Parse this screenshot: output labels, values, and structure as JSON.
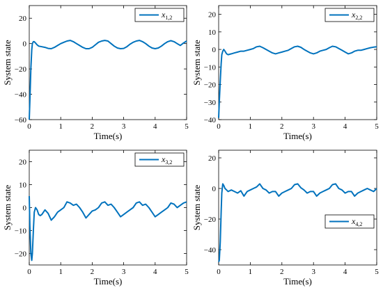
{
  "chart_data": [
    {
      "type": "line",
      "xlabel": "Time(s)",
      "ylabel": "System state",
      "xlim": [
        0,
        5
      ],
      "ylim": [
        -60,
        30
      ],
      "xticks": [
        0,
        1,
        2,
        3,
        4,
        5
      ],
      "yticks": [
        -60,
        -40,
        -20,
        0,
        20
      ],
      "legend": {
        "base": "x",
        "sub": "1,2",
        "position": "top-right"
      },
      "series": [
        {
          "name": "x1,2",
          "x": [
            0,
            0.02,
            0.05,
            0.08,
            0.1,
            0.13,
            0.16,
            0.2,
            0.25,
            0.3,
            0.4,
            0.5,
            0.6,
            0.7,
            0.8,
            0.9,
            1.0,
            1.1,
            1.2,
            1.3,
            1.4,
            1.5,
            1.6,
            1.7,
            1.8,
            1.9,
            2.0,
            2.1,
            2.2,
            2.3,
            2.4,
            2.5,
            2.6,
            2.7,
            2.8,
            2.9,
            3.0,
            3.1,
            3.2,
            3.3,
            3.4,
            3.5,
            3.6,
            3.7,
            3.8,
            3.9,
            4.0,
            4.1,
            4.2,
            4.3,
            4.4,
            4.5,
            4.6,
            4.7,
            4.8,
            4.9,
            5.0
          ],
          "y": [
            -60,
            -45,
            -20,
            -5,
            0,
            1.5,
            1.5,
            0.5,
            -1,
            -2,
            -2.5,
            -3,
            -3.8,
            -4,
            -3,
            -1.5,
            0,
            1,
            2,
            2.5,
            1.5,
            0,
            -1.5,
            -3,
            -4,
            -4,
            -3,
            -1,
            1,
            2,
            2.5,
            2,
            0,
            -2,
            -3.5,
            -4,
            -3.8,
            -2.5,
            -0.5,
            1,
            2,
            2.5,
            1.5,
            0,
            -2,
            -3.5,
            -4,
            -3.5,
            -2,
            0,
            1.5,
            2.3,
            1.5,
            0,
            -1.5,
            0.5,
            2
          ]
        }
      ]
    },
    {
      "type": "line",
      "xlabel": "Time(s)",
      "ylabel": "System state",
      "xlim": [
        0,
        5
      ],
      "ylim": [
        -40,
        25
      ],
      "xticks": [
        0,
        1,
        2,
        3,
        4,
        5
      ],
      "yticks": [
        -40,
        -30,
        -20,
        -10,
        0,
        10,
        20
      ],
      "legend": {
        "base": "x",
        "sub": "2,2",
        "position": "top-right"
      },
      "series": [
        {
          "name": "x2,2",
          "x": [
            0,
            0.02,
            0.05,
            0.08,
            0.1,
            0.13,
            0.16,
            0.2,
            0.25,
            0.3,
            0.4,
            0.5,
            0.6,
            0.7,
            0.8,
            0.9,
            1.0,
            1.1,
            1.2,
            1.3,
            1.4,
            1.5,
            1.6,
            1.7,
            1.8,
            1.9,
            2.0,
            2.1,
            2.2,
            2.3,
            2.4,
            2.5,
            2.6,
            2.7,
            2.8,
            2.9,
            3.0,
            3.1,
            3.2,
            3.3,
            3.4,
            3.5,
            3.6,
            3.7,
            3.8,
            3.9,
            4.0,
            4.1,
            4.2,
            4.3,
            4.4,
            4.5,
            4.6,
            4.7,
            4.8,
            4.9,
            5.0
          ],
          "y": [
            -39,
            -30,
            -18,
            -8,
            -3,
            -1,
            0,
            -1,
            -2.5,
            -3,
            -2.5,
            -2,
            -1.5,
            -1,
            -1,
            -0.5,
            0,
            0.5,
            1.5,
            1.8,
            1,
            0,
            -1,
            -2,
            -2.5,
            -2,
            -1.5,
            -1,
            -0.5,
            0.5,
            1.5,
            1.8,
            1.2,
            0,
            -1,
            -2,
            -2.5,
            -2,
            -1,
            -0.5,
            0,
            1,
            1.8,
            1.5,
            0.5,
            -0.5,
            -1.5,
            -2.5,
            -2,
            -1,
            -0.5,
            -0.5,
            0,
            0.5,
            1,
            1.3,
            1.5
          ]
        }
      ]
    },
    {
      "type": "line",
      "xlabel": "Time(s)",
      "ylabel": "System state",
      "xlim": [
        0,
        5
      ],
      "ylim": [
        -25,
        25
      ],
      "xticks": [
        0,
        1,
        2,
        3,
        4,
        5
      ],
      "yticks": [
        -20,
        -10,
        0,
        10,
        20
      ],
      "legend": {
        "base": "x",
        "sub": "3,2",
        "position": "top-right"
      },
      "series": [
        {
          "name": "x3,2",
          "x": [
            0,
            0.02,
            0.05,
            0.08,
            0.1,
            0.13,
            0.16,
            0.2,
            0.25,
            0.3,
            0.35,
            0.4,
            0.5,
            0.6,
            0.7,
            0.8,
            0.9,
            1.0,
            1.1,
            1.2,
            1.3,
            1.4,
            1.5,
            1.6,
            1.7,
            1.8,
            1.9,
            2.0,
            2.1,
            2.2,
            2.3,
            2.4,
            2.5,
            2.6,
            2.7,
            2.8,
            2.9,
            3.0,
            3.1,
            3.2,
            3.3,
            3.4,
            3.5,
            3.6,
            3.7,
            3.8,
            3.9,
            4.0,
            4.1,
            4.2,
            4.3,
            4.4,
            4.5,
            4.6,
            4.7,
            4.8,
            4.9,
            5.0
          ],
          "y": [
            5,
            -8,
            -20,
            -23,
            -20,
            -10,
            -2,
            0,
            -1,
            -3,
            -3.5,
            -3,
            -1,
            -2.5,
            -5.5,
            -4,
            -2,
            -1,
            0,
            2.5,
            2,
            1,
            1.5,
            0,
            -2,
            -4.5,
            -3,
            -1.5,
            -1,
            0,
            2,
            2.5,
            1,
            1.5,
            0,
            -2,
            -4,
            -3,
            -2,
            -1,
            0,
            2,
            2.5,
            1,
            1.5,
            0,
            -2,
            -4,
            -3,
            -2,
            -1,
            0,
            2,
            1.5,
            0,
            1,
            2,
            2.5
          ]
        }
      ]
    },
    {
      "type": "line",
      "xlabel": "Time(s)",
      "ylabel": "System state",
      "xlim": [
        0,
        5
      ],
      "ylim": [
        -50,
        25
      ],
      "xticks": [
        0,
        1,
        2,
        3,
        4,
        5
      ],
      "yticks": [
        -40,
        -20,
        0,
        20
      ],
      "legend": {
        "base": "x",
        "sub": "4,2",
        "position": "lower-right"
      },
      "series": [
        {
          "name": "x4,2",
          "x": [
            0,
            0.02,
            0.05,
            0.08,
            0.1,
            0.13,
            0.16,
            0.2,
            0.25,
            0.3,
            0.4,
            0.5,
            0.6,
            0.7,
            0.8,
            0.9,
            1.0,
            1.1,
            1.2,
            1.3,
            1.4,
            1.5,
            1.6,
            1.7,
            1.8,
            1.9,
            2.0,
            2.1,
            2.2,
            2.3,
            2.4,
            2.5,
            2.6,
            2.7,
            2.8,
            2.9,
            3.0,
            3.1,
            3.2,
            3.3,
            3.4,
            3.5,
            3.6,
            3.7,
            3.8,
            3.9,
            4.0,
            4.1,
            4.2,
            4.3,
            4.4,
            4.5,
            4.6,
            4.7,
            4.8,
            4.9,
            5.0
          ],
          "y": [
            -48,
            -47,
            -35,
            -15,
            -3,
            3,
            2,
            0,
            -1,
            -2,
            -1,
            -2,
            -3,
            -1.5,
            -5,
            -2,
            -1,
            0,
            1,
            3,
            0,
            -1,
            -3,
            -2,
            -2,
            -5,
            -3,
            -2,
            -1,
            0,
            2.5,
            3,
            0.5,
            -1,
            -3,
            -2,
            -2,
            -5,
            -3,
            -2,
            -1,
            0,
            2.5,
            3,
            0,
            -1,
            -3,
            -2,
            -2,
            -5,
            -3,
            -2,
            -1,
            0,
            -1,
            -2,
            0
          ]
        }
      ]
    }
  ]
}
